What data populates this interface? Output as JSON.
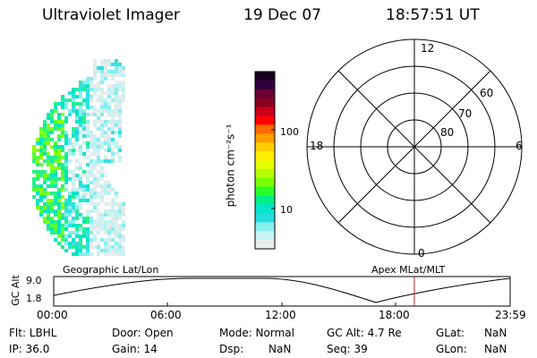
{
  "header": {
    "title": "Ultraviolet Imager",
    "date": "19 Dec 07",
    "time": "18:57:51 UT"
  },
  "colorbar": {
    "unit_label": "photon cm⁻²s⁻¹",
    "ticks": [
      "100",
      "10"
    ],
    "colors": [
      "#1a0020",
      "#33003f",
      "#6a0033",
      "#8a0020",
      "#c8001a",
      "#ff0000",
      "#ff6a00",
      "#ff9c00",
      "#ffcc00",
      "#ffee00",
      "#e8ff00",
      "#b8ff00",
      "#78ff00",
      "#28ff28",
      "#00ee88",
      "#00e6cc",
      "#22dddd",
      "#88eeee",
      "#c8f4f4",
      "#e8ecec"
    ]
  },
  "polar": {
    "labels": {
      "top": "12",
      "bottom": "0",
      "left": "18",
      "right": "6"
    },
    "lat_labels": [
      "60",
      "70",
      "80"
    ]
  },
  "timeline": {
    "ylabel": "GC Alt",
    "yticks": [
      "9.0",
      "1.8"
    ],
    "left_title": "Geographic Lat/Lon",
    "right_title": "Apex MLat/MLT",
    "xticks": [
      "00:00",
      "06:00",
      "12:00",
      "18:00",
      "23:59"
    ],
    "current_time_hours": 18.96
  },
  "info": {
    "row1": [
      "Flt: LBHL",
      "Door: Open",
      "Mode: Normal",
      "GC Alt: 4.7 Re",
      "GLat:",
      "NaN"
    ],
    "row2": [
      "IP: 36.0",
      "Gain: 14",
      "Dsp:",
      "NaN",
      "Seq: 39",
      "GLon:",
      "NaN"
    ]
  }
}
